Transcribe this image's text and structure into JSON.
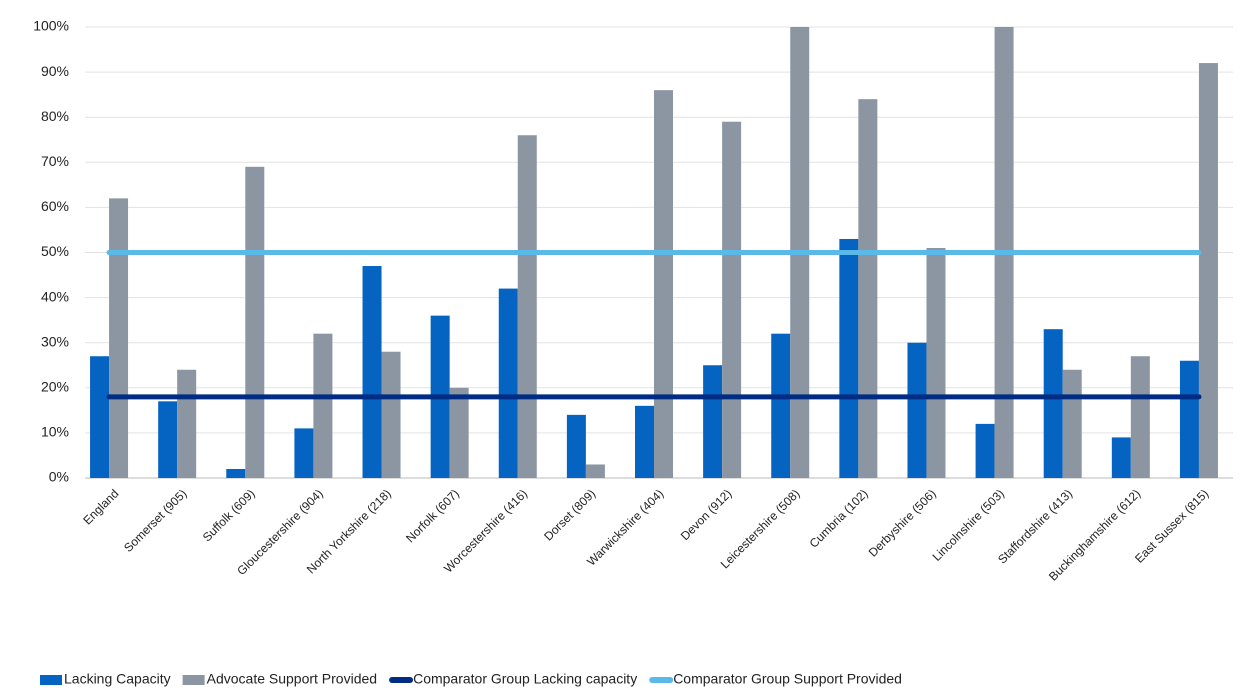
{
  "chart_data": {
    "type": "bar",
    "categories": [
      "England",
      "Somerset (905)",
      "Suffolk (609)",
      "Gloucestershire (904)",
      "North Yorkshire (218)",
      "Norfolk (607)",
      "Worcestershire (416)",
      "Dorset (809)",
      "Warwickshire (404)",
      "Devon (912)",
      "Leicestershire (508)",
      "Cumbria (102)",
      "Derbyshire (506)",
      "Lincolnshire (503)",
      "Staffordshire (413)",
      "Buckinghamshire (612)",
      "East Sussex (815)"
    ],
    "series": [
      {
        "name": "Lacking Capacity",
        "type": "bar",
        "color": "#0563c1",
        "values": [
          27,
          17,
          2,
          11,
          47,
          36,
          42,
          14,
          16,
          25,
          32,
          53,
          30,
          12,
          33,
          9,
          26
        ]
      },
      {
        "name": "Advocate Support Provided",
        "type": "bar",
        "color": "#8b96a2",
        "values": [
          62,
          24,
          69,
          32,
          28,
          20,
          76,
          3,
          86,
          79,
          100,
          84,
          51,
          100,
          24,
          27,
          92
        ]
      },
      {
        "name": "Comparator Group Lacking capacity",
        "type": "line",
        "color": "#002c84",
        "values": [
          18,
          18,
          18,
          18,
          18,
          18,
          18,
          18,
          18,
          18,
          18,
          18,
          18,
          18,
          18,
          18,
          18
        ]
      },
      {
        "name": "Comparator Group Support Provided",
        "type": "line",
        "color": "#5bb9ea",
        "values": [
          50,
          50,
          50,
          50,
          50,
          50,
          50,
          50,
          50,
          50,
          50,
          50,
          50,
          50,
          50,
          50,
          50
        ]
      }
    ],
    "ylim": [
      0,
      100
    ],
    "yticks": [
      {
        "value": 0,
        "label": "0%"
      },
      {
        "value": 10,
        "label": "10%"
      },
      {
        "value": 20,
        "label": "20%"
      },
      {
        "value": 30,
        "label": "30%"
      },
      {
        "value": 40,
        "label": "40%"
      },
      {
        "value": 50,
        "label": "50%"
      },
      {
        "value": 60,
        "label": "60%"
      },
      {
        "value": 70,
        "label": "70%"
      },
      {
        "value": 80,
        "label": "80%"
      },
      {
        "value": 90,
        "label": "90%"
      },
      {
        "value": 100,
        "label": "100%"
      }
    ],
    "grid": true,
    "legend": "bottom"
  }
}
